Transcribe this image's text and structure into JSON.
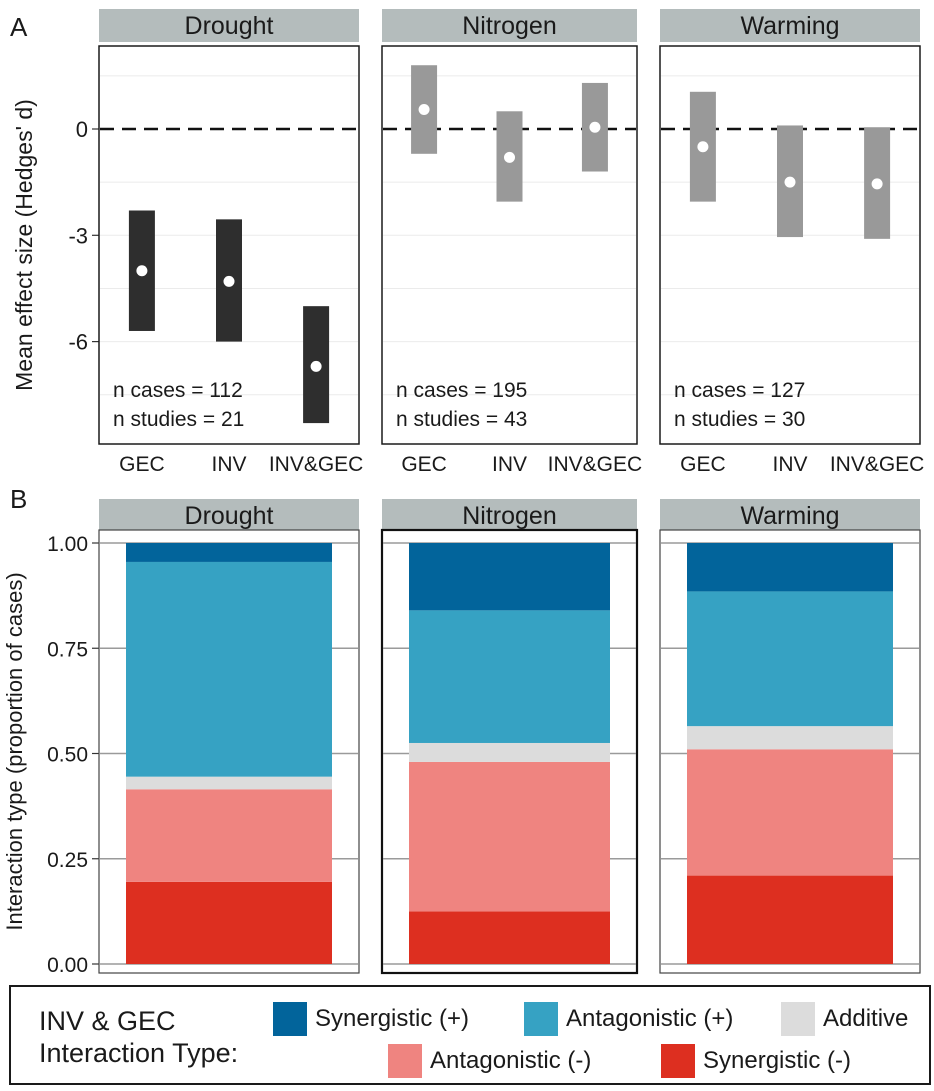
{
  "panel_labels": {
    "a": "A",
    "b": "B"
  },
  "colors": {
    "strip_bg": "#b4bcbc",
    "drought_bar": "#2e2e2e",
    "other_bar": "#999999",
    "synergistic_pos": "#02649b",
    "antagonistic_pos": "#36a2c3",
    "additive": "#dcdcdc",
    "antagonistic_neg": "#ef8480",
    "synergistic_neg": "#dd2f20"
  },
  "legend": {
    "title_line1": "INV & GEC",
    "title_line2": "Interaction Type:",
    "items": [
      {
        "label": "Synergistic (+)",
        "color": "#02649b"
      },
      {
        "label": "Antagonistic (+)",
        "color": "#36a2c3"
      },
      {
        "label": "Additive",
        "color": "#dcdcdc"
      },
      {
        "label": "Antagonistic (-)",
        "color": "#ef8480"
      },
      {
        "label": "Synergistic (-)",
        "color": "#dd2f20"
      }
    ]
  },
  "chart_data": [
    {
      "type": "errorbar",
      "panel": "A",
      "ylabel": "Mean effect size (Hedges' d)",
      "ylim": [
        -8.3,
        2.4
      ],
      "yticks": [
        "0",
        "-3",
        "-6"
      ],
      "reference_line": 0,
      "facets": [
        {
          "name": "Drought",
          "categories": [
            "GEC",
            "INV",
            "INV&GEC"
          ],
          "mean": [
            -4.0,
            -4.3,
            -6.7
          ],
          "lower": [
            -5.7,
            -6.0,
            -8.3
          ],
          "upper": [
            -2.3,
            -2.55,
            -5.0
          ],
          "n_cases": "n cases = 112",
          "n_studies": "n studies = 21"
        },
        {
          "name": "Nitrogen",
          "categories": [
            "GEC",
            "INV",
            "INV&GEC"
          ],
          "mean": [
            0.55,
            -0.8,
            0.05
          ],
          "lower": [
            -0.7,
            -2.05,
            -1.2
          ],
          "upper": [
            1.8,
            0.5,
            1.3
          ],
          "n_cases": "n cases = 195",
          "n_studies": "n studies = 43"
        },
        {
          "name": "Warming",
          "categories": [
            "GEC",
            "INV",
            "INV&GEC"
          ],
          "mean": [
            -0.5,
            -1.5,
            -1.55
          ],
          "lower": [
            -2.05,
            -3.05,
            -3.1
          ],
          "upper": [
            1.05,
            0.1,
            0.05
          ],
          "n_cases": "n cases = 127",
          "n_studies": "n studies = 30"
        }
      ]
    },
    {
      "type": "bar",
      "stacked": true,
      "panel": "B",
      "ylabel": "Interaction type (proportion of cases)",
      "ylim": [
        0,
        1
      ],
      "yticks": [
        "0.00",
        "0.25",
        "0.50",
        "0.75",
        "1.00"
      ],
      "series_order": [
        "Synergistic (-)",
        "Antagonistic (-)",
        "Additive",
        "Antagonistic (+)",
        "Synergistic (+)"
      ],
      "facets": [
        {
          "name": "Drought",
          "values": [
            0.195,
            0.22,
            0.03,
            0.51,
            0.045
          ]
        },
        {
          "name": "Nitrogen",
          "values": [
            0.125,
            0.355,
            0.045,
            0.315,
            0.16
          ]
        },
        {
          "name": "Warming",
          "values": [
            0.21,
            0.3,
            0.055,
            0.32,
            0.115
          ]
        }
      ]
    }
  ]
}
